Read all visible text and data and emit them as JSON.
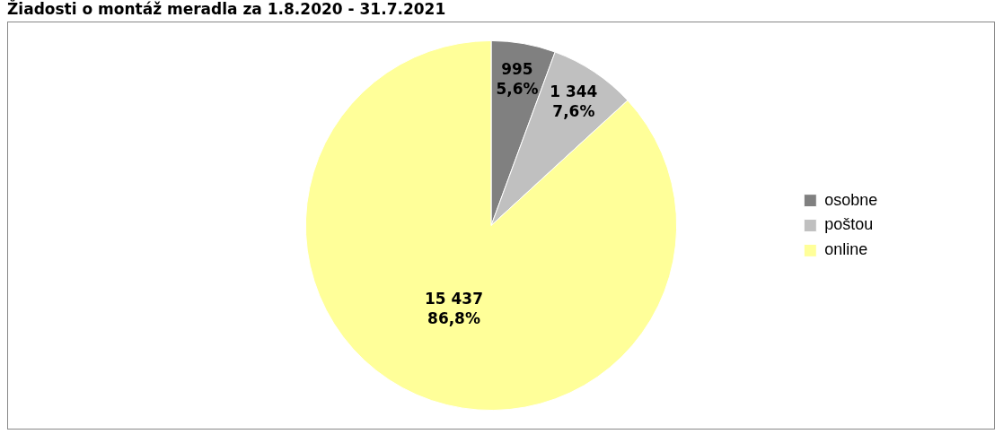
{
  "chart_data": {
    "type": "pie",
    "title": "Žiadosti o montáž meradla za 1.8.2020 - 31.7.2021",
    "categories": [
      "osobne",
      "poštou",
      "online"
    ],
    "values": [
      995,
      1344,
      15437
    ],
    "colors": [
      "#808080",
      "#c0c0c0",
      "#ffff99"
    ],
    "value_labels": [
      "995\n5,6%",
      "1 344\n7,6%",
      "15 437\n86,8%"
    ],
    "legend": "right"
  }
}
